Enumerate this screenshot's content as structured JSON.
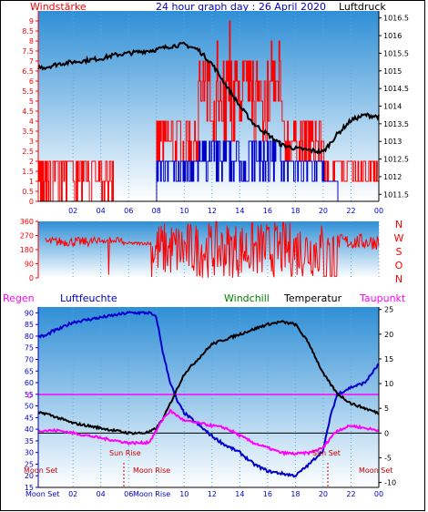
{
  "title": "24 hour graph day : 26 April 2020",
  "colors": {
    "red": "#ff0000",
    "blue": "#0000cc",
    "black": "#000000",
    "magenta": "#ff00ff",
    "green": "#008000",
    "sky_top": "#2f8fd6",
    "sky_bottom": "#ffffff"
  },
  "chart_data": [
    {
      "type": "line",
      "panel": "wind-pressure",
      "left_label": "Windstärke",
      "right_label": "Luftdruck",
      "x_ticks": [
        "02",
        "04",
        "06",
        "08",
        "10",
        "12",
        "14",
        "16",
        "18",
        "20",
        "22",
        "00"
      ],
      "y_left_ticks": [
        "0",
        "0.5",
        "1",
        "1.5",
        "2",
        "2.5",
        "3",
        "3.5",
        "4",
        "4.5",
        "5",
        "5.5",
        "6",
        "6.5",
        "7",
        "7.5",
        "8",
        "8.5",
        "9"
      ],
      "y_right_ticks": [
        "1011.5",
        "1012",
        "1012.5",
        "1013",
        "1013.5",
        "1014",
        "1014.5",
        "1015",
        "1015.5",
        "1016",
        "1016.5"
      ],
      "ylim_left": [
        0,
        9.5
      ],
      "ylim_right": [
        1011.3,
        1016.7
      ],
      "series": [
        {
          "name": "Luftdruck",
          "axis": "right",
          "color": "#000000",
          "x": [
            0,
            1,
            2,
            3,
            4,
            5,
            6,
            7,
            8,
            9,
            10,
            11,
            12,
            13,
            14,
            15,
            16,
            17,
            18,
            19,
            20,
            21,
            22,
            23,
            24
          ],
          "values": [
            1015.1,
            1015.2,
            1015.25,
            1015.3,
            1015.35,
            1015.45,
            1015.5,
            1015.55,
            1015.6,
            1015.7,
            1015.75,
            1015.6,
            1015.2,
            1014.6,
            1014.0,
            1013.5,
            1013.2,
            1012.9,
            1012.8,
            1012.75,
            1012.7,
            1013.2,
            1013.6,
            1013.75,
            1013.7
          ]
        }
      ]
    },
    {
      "type": "line",
      "panel": "wind-direction",
      "right_labels": [
        "N",
        "W",
        "S",
        "O",
        "N"
      ],
      "y_ticks": [
        "0",
        "90",
        "180",
        "270",
        "360"
      ],
      "ylim": [
        0,
        360
      ]
    },
    {
      "type": "line",
      "panel": "climate",
      "legend": [
        "Regen",
        "Luftfeuchte",
        "Windchill",
        "Temperatur",
        "Taupunkt"
      ],
      "y_left_ticks": [
        "15",
        "20",
        "25",
        "30",
        "35",
        "40",
        "45",
        "50",
        "55",
        "60",
        "65",
        "70",
        "75",
        "80",
        "85",
        "90"
      ],
      "y_right_ticks": [
        "-10",
        "-5",
        "0",
        "5",
        "10",
        "15",
        "20",
        "25"
      ],
      "ylim_left": [
        15,
        92.5
      ],
      "ylim_right": [
        -11,
        25.5
      ],
      "zero_label": "0",
      "annotations": [
        "Sun Rise",
        "Sun Set",
        "Moon Set",
        "Moon Rise",
        "Moon Set"
      ],
      "bottom_moon_labels": [
        "Moon Set",
        "Moon Rise"
      ],
      "series": [
        {
          "name": "Luftfeuchte",
          "axis": "left",
          "color": "#0000cc",
          "x": [
            0,
            0.5,
            1,
            2,
            3,
            4,
            5,
            6,
            7,
            7.5,
            8,
            8.5,
            9,
            9.5,
            10,
            11,
            12,
            13,
            14,
            15,
            16,
            17,
            18,
            19,
            20,
            20.5,
            21,
            22,
            23,
            24
          ],
          "values": [
            80,
            82,
            83,
            86,
            87,
            88,
            89,
            90,
            90,
            90,
            88,
            72,
            60,
            52,
            47,
            42,
            37,
            33,
            30,
            25,
            22,
            21,
            20,
            25,
            31,
            45,
            55,
            58,
            60,
            68
          ]
        },
        {
          "name": "Temperatur",
          "axis": "right",
          "color": "#000000",
          "x": [
            0,
            1,
            2,
            3,
            4,
            5,
            6,
            7,
            7.5,
            8,
            8.5,
            9,
            9.5,
            10,
            11,
            12,
            13,
            14,
            15,
            16,
            17,
            18,
            19,
            20,
            21,
            22,
            23,
            24
          ],
          "values": [
            4,
            3,
            2,
            1.5,
            1,
            0.5,
            0,
            0,
            0.2,
            1,
            3,
            6,
            9,
            12,
            15,
            18,
            19,
            20,
            21,
            22,
            22.5,
            22,
            18,
            12,
            8,
            6,
            5,
            4
          ]
        },
        {
          "name": "Taupunkt",
          "axis": "right",
          "color": "#ff00ff",
          "x": [
            0,
            1,
            2,
            3,
            4,
            5,
            6,
            7,
            7.5,
            8,
            8.5,
            9,
            9.5,
            10,
            11,
            12,
            13,
            14,
            15,
            16,
            17,
            18,
            19,
            20,
            20.5,
            21,
            22,
            23,
            24
          ],
          "values": [
            0.5,
            0.5,
            0,
            -0.5,
            -1,
            -1.5,
            -2,
            -2,
            -1.8,
            0.5,
            3,
            4.5,
            3.5,
            2.5,
            2,
            1.5,
            1,
            -0.5,
            -2,
            -3,
            -4,
            -4.2,
            -4,
            -3,
            -1,
            0.5,
            1.5,
            1,
            0.5
          ]
        }
      ]
    }
  ]
}
